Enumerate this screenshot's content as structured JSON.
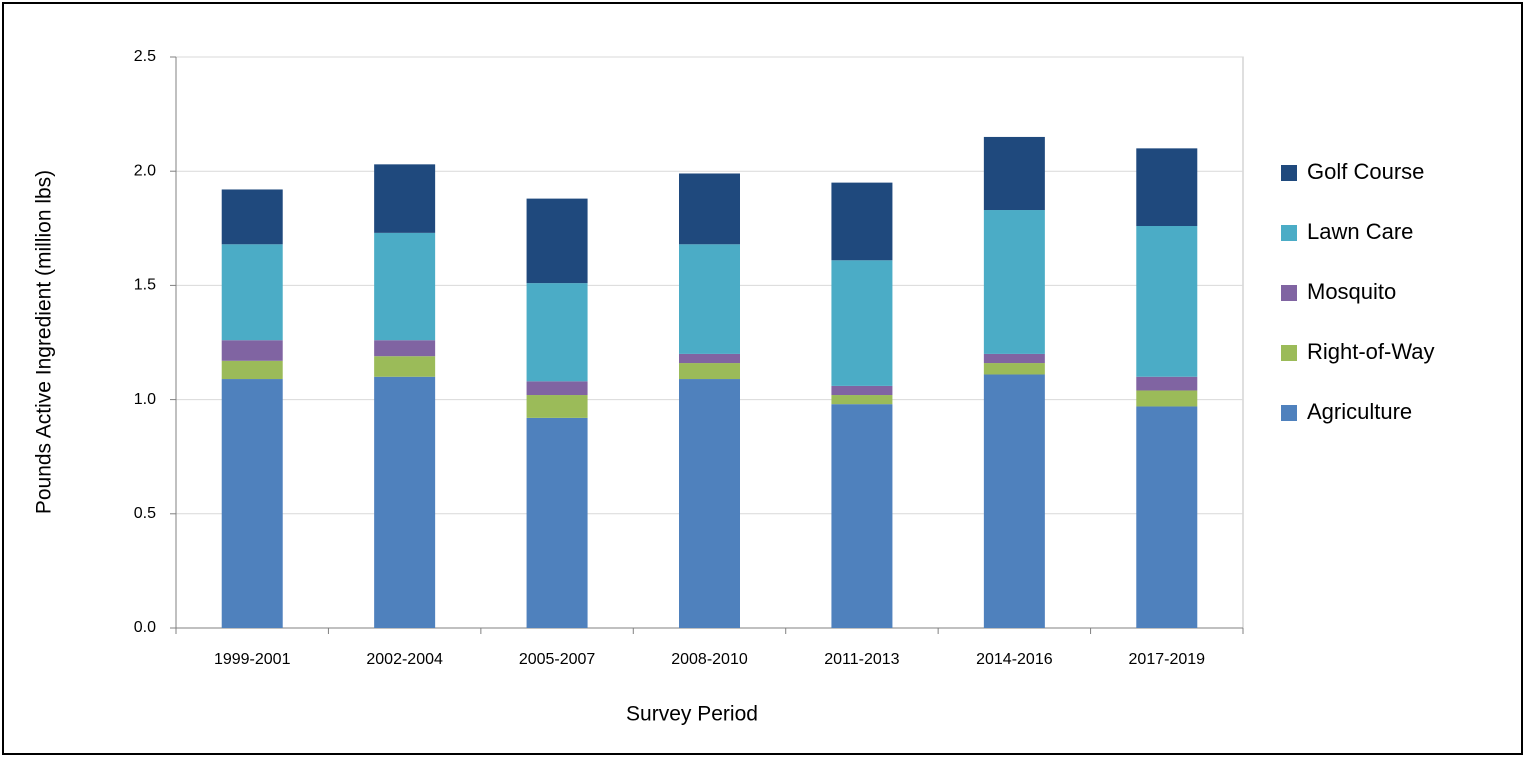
{
  "chart_data": {
    "type": "stacked-bar",
    "x_label": "Survey Period",
    "y_label": "Pounds Active Ingredient (million lbs)",
    "categories": [
      "1999-2001",
      "2002-2004",
      "2005-2007",
      "2008-2010",
      "2011-2013",
      "2014-2016",
      "2017-2019"
    ],
    "series": [
      {
        "name": "Agriculture",
        "color": "#4f81bd",
        "values": [
          1.09,
          1.1,
          0.92,
          1.09,
          0.98,
          1.11,
          0.97
        ]
      },
      {
        "name": "Right-of-Way",
        "color": "#9bbb59",
        "values": [
          0.08,
          0.09,
          0.1,
          0.07,
          0.04,
          0.05,
          0.07
        ]
      },
      {
        "name": "Mosquito",
        "color": "#8064a2",
        "values": [
          0.09,
          0.07,
          0.06,
          0.04,
          0.04,
          0.04,
          0.06
        ]
      },
      {
        "name": "Lawn Care",
        "color": "#4bacc6",
        "values": [
          0.42,
          0.47,
          0.43,
          0.48,
          0.55,
          0.63,
          0.66
        ]
      },
      {
        "name": "Golf Course",
        "color": "#1f497d",
        "values": [
          0.24,
          0.3,
          0.37,
          0.31,
          0.34,
          0.32,
          0.34
        ]
      }
    ],
    "ylim": [
      0,
      2.5
    ],
    "yticks": [
      {
        "value": 0,
        "label": "0.0"
      },
      0.5,
      {
        "value": 1,
        "label": "1.0"
      },
      1.5,
      {
        "value": 2,
        "label": "2.0"
      },
      2.5
    ],
    "grid": true,
    "legend": "right"
  }
}
